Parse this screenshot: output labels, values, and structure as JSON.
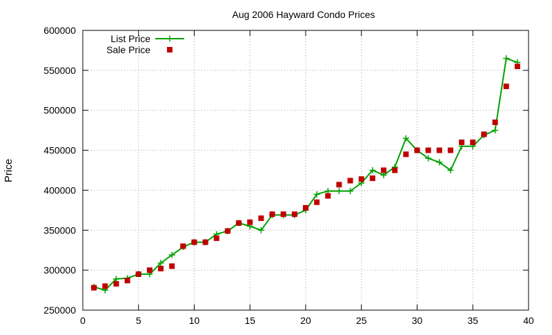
{
  "chart_data": {
    "type": "line",
    "title": "Aug 2006 Hayward Condo Prices",
    "xlabel": "",
    "ylabel": "Price",
    "xlim": [
      0,
      40
    ],
    "ylim": [
      250000,
      600000
    ],
    "x_ticks": [
      0,
      5,
      10,
      15,
      20,
      25,
      30,
      35,
      40
    ],
    "y_ticks": [
      250000,
      300000,
      350000,
      400000,
      450000,
      500000,
      550000,
      600000
    ],
    "grid": true,
    "legend_position": "top-left",
    "series": [
      {
        "name": "List Price",
        "style": "line-with-plus-markers",
        "color": "#00a000",
        "x": [
          1,
          2,
          3,
          4,
          5,
          6,
          7,
          8,
          9,
          10,
          11,
          12,
          13,
          14,
          15,
          16,
          17,
          18,
          19,
          20,
          21,
          22,
          23,
          24,
          25,
          26,
          27,
          28,
          29,
          30,
          31,
          32,
          33,
          34,
          35,
          36,
          37,
          38,
          39
        ],
        "values": [
          279000,
          275000,
          289000,
          290000,
          295000,
          295000,
          309000,
          319000,
          329000,
          335000,
          335000,
          345000,
          349000,
          359000,
          355000,
          350000,
          369000,
          369000,
          369000,
          375000,
          395000,
          399000,
          399000,
          399000,
          409000,
          425000,
          419000,
          429000,
          465000,
          450000,
          440000,
          435000,
          425000,
          455000,
          455000,
          469000,
          475000,
          565000,
          560000
        ]
      },
      {
        "name": "Sale Price",
        "style": "square-markers",
        "color": "#c00000",
        "x": [
          1,
          2,
          3,
          4,
          5,
          6,
          7,
          8,
          9,
          10,
          11,
          12,
          13,
          14,
          15,
          16,
          17,
          18,
          19,
          20,
          21,
          22,
          23,
          24,
          25,
          26,
          27,
          28,
          29,
          30,
          31,
          32,
          33,
          34,
          35,
          36,
          37,
          38,
          39
        ],
        "values": [
          278000,
          280000,
          283000,
          287000,
          295000,
          300000,
          302000,
          305000,
          330000,
          335000,
          335000,
          340000,
          349000,
          359000,
          360000,
          365000,
          370000,
          370000,
          370000,
          378000,
          385000,
          393000,
          407000,
          412000,
          414000,
          415000,
          425000,
          425000,
          445000,
          450000,
          450000,
          450000,
          450000,
          460000,
          460000,
          470000,
          485000,
          530000,
          555000
        ]
      }
    ]
  }
}
